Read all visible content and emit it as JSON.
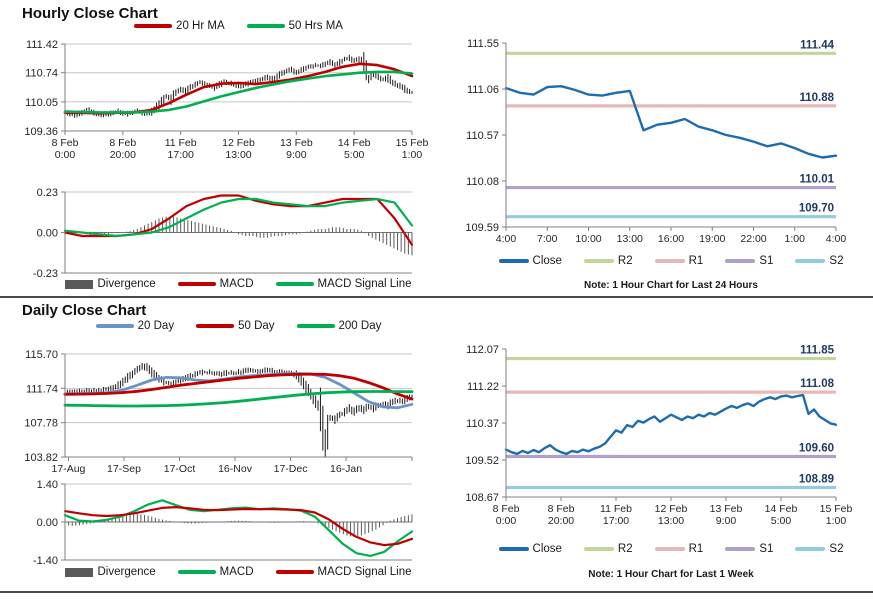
{
  "sections": {
    "hourly": {
      "title": "Hourly Close Chart"
    },
    "daily": {
      "title": "Daily Close Chart"
    }
  },
  "colors": {
    "red": "#c00000",
    "green": "#00b050",
    "blue20": "#6b93c8",
    "close": "#1e6cb0",
    "r2": "#c2d69b",
    "r1": "#e6b9b8",
    "s1": "#b1a0c7",
    "s2": "#93cddd",
    "divergence": "#595959",
    "candle": "#1a1a1a",
    "axis": "#808080",
    "grid": "#c6c6c6",
    "zero": "#737373",
    "level_label": "#1f3864"
  },
  "chart_data": [
    {
      "name": "hourly-price",
      "type": "line",
      "ylim": [
        109.36,
        111.42
      ],
      "yticks": [
        111.42,
        110.74,
        110.05,
        109.36
      ],
      "xticks": [
        "8 Feb|0:00",
        "8 Feb|20:00",
        "11 Feb|17:00",
        "12 Feb|13:00",
        "13 Feb|9:00",
        "14 Feb|5:00",
        "15 Feb|1:00"
      ],
      "grid": "all",
      "candles": {
        "color": "candle",
        "pad": 0.035,
        "values": [
          109.8,
          109.76,
          109.74,
          109.78,
          109.82,
          109.85,
          109.8,
          109.76,
          109.73,
          109.76,
          109.8,
          109.83,
          109.79,
          109.76,
          109.8,
          109.84,
          109.8,
          109.77,
          109.82,
          109.9,
          110.05,
          110.18,
          110.12,
          110.28,
          110.35,
          110.3,
          110.38,
          110.45,
          110.5,
          110.48,
          110.42,
          110.38,
          110.45,
          110.52,
          110.5,
          110.46,
          110.42,
          110.45,
          110.48,
          110.52,
          110.56,
          110.6,
          110.63,
          110.58,
          110.65,
          110.72,
          110.78,
          110.82,
          110.75,
          110.8,
          110.85,
          110.88,
          110.92,
          110.9,
          110.95,
          111.0,
          110.92,
          110.98,
          111.05,
          111.08,
          111.02,
          111.06,
          110.98,
          110.6,
          110.72,
          110.65,
          110.58,
          110.62,
          110.5,
          110.45,
          110.4,
          110.32,
          110.28
        ]
      },
      "series": [
        {
          "name": "20 Hr MA",
          "color": "red",
          "width": 2.6,
          "values": [
            109.79,
            109.79,
            109.78,
            109.79,
            109.8,
            109.86,
            110.02,
            110.22,
            110.4,
            110.48,
            110.5,
            110.47,
            110.52,
            110.58,
            110.66,
            110.76,
            110.88,
            110.95,
            110.92,
            110.82,
            110.66
          ]
        },
        {
          "name": "50 Hrs MA",
          "color": "green",
          "width": 2.6,
          "values": [
            109.82,
            109.81,
            109.8,
            109.8,
            109.8,
            109.82,
            109.86,
            109.94,
            110.06,
            110.18,
            110.28,
            110.38,
            110.46,
            110.54,
            110.6,
            110.66,
            110.7,
            110.74,
            110.76,
            110.76,
            110.72
          ]
        }
      ],
      "legend": [
        {
          "label": "20 Hr MA",
          "swatch": "line",
          "color": "red"
        },
        {
          "label": "50 Hrs MA",
          "swatch": "line",
          "color": "green"
        }
      ]
    },
    {
      "name": "hourly-macd",
      "type": "line",
      "ylim": [
        -0.23,
        0.23
      ],
      "yticks": [
        0.23,
        0.0,
        -0.23
      ],
      "xticks": [],
      "grid": "ends",
      "zero_line": true,
      "bars": {
        "color": "divergence",
        "values": [
          -0.01,
          -0.01,
          0.0,
          -0.01,
          -0.02,
          -0.01,
          -0.01,
          0.0,
          0.0,
          0.01,
          0.02,
          0.04,
          0.06,
          0.08,
          0.09,
          0.09,
          0.08,
          0.07,
          0.06,
          0.05,
          0.04,
          0.03,
          0.02,
          0.01,
          -0.01,
          -0.02,
          -0.02,
          -0.03,
          -0.03,
          -0.02,
          -0.02,
          -0.01,
          -0.01,
          0.0,
          0.01,
          0.02,
          0.02,
          0.03,
          0.03,
          0.02,
          0.02,
          0.01,
          -0.02,
          -0.04,
          -0.06,
          -0.08,
          -0.1,
          -0.12,
          -0.13
        ]
      },
      "series": [
        {
          "name": "MACD",
          "color": "red",
          "width": 2.2,
          "values": [
            0.0,
            -0.02,
            -0.02,
            -0.02,
            -0.01,
            0.02,
            0.08,
            0.15,
            0.19,
            0.21,
            0.21,
            0.18,
            0.16,
            0.15,
            0.15,
            0.17,
            0.19,
            0.19,
            0.19,
            0.08,
            -0.07
          ]
        },
        {
          "name": "MACD Signal Line",
          "color": "green",
          "width": 2.2,
          "values": [
            0.01,
            0.0,
            -0.01,
            -0.02,
            -0.01,
            0.0,
            0.03,
            0.08,
            0.13,
            0.17,
            0.19,
            0.19,
            0.17,
            0.16,
            0.15,
            0.15,
            0.17,
            0.18,
            0.19,
            0.17,
            0.04
          ]
        }
      ],
      "legend": [
        {
          "label": "Divergence",
          "swatch": "rect",
          "color": "divergence"
        },
        {
          "label": "MACD",
          "swatch": "line",
          "color": "red"
        },
        {
          "label": "MACD Signal Line",
          "swatch": "line",
          "color": "green"
        }
      ]
    },
    {
      "name": "day24-close",
      "type": "line",
      "ylim": [
        109.59,
        111.55
      ],
      "yticks": [
        111.55,
        111.06,
        110.57,
        110.08,
        109.59
      ],
      "xticks": [
        "4:00",
        "7:00",
        "10:00",
        "13:00",
        "16:00",
        "19:00",
        "22:00",
        "1:00",
        "4:00"
      ],
      "grid": "none",
      "note": "Note: 1 Hour Chart for Last 24 Hours",
      "levels": [
        {
          "name": "R2",
          "value": 111.44,
          "label": "111.44",
          "color": "r2"
        },
        {
          "name": "R1",
          "value": 110.88,
          "label": "110.88",
          "color": "r1"
        },
        {
          "name": "S1",
          "value": 110.01,
          "label": "110.01",
          "color": "s1"
        },
        {
          "name": "S2",
          "value": 109.7,
          "label": "109.70",
          "color": "s2"
        }
      ],
      "series": [
        {
          "name": "Close",
          "color": "close",
          "width": 2.4,
          "values": [
            111.07,
            111.02,
            111.0,
            111.08,
            111.09,
            111.05,
            111.0,
            110.99,
            111.02,
            111.04,
            110.62,
            110.68,
            110.7,
            110.74,
            110.66,
            110.62,
            110.57,
            110.54,
            110.5,
            110.45,
            110.48,
            110.43,
            110.37,
            110.33,
            110.35
          ]
        }
      ],
      "legend": [
        {
          "label": "Close",
          "swatch": "line",
          "color": "close"
        },
        {
          "label": "R2",
          "swatch": "line",
          "color": "r2"
        },
        {
          "label": "R1",
          "swatch": "line",
          "color": "r1"
        },
        {
          "label": "S1",
          "swatch": "line",
          "color": "s1"
        },
        {
          "label": "S2",
          "swatch": "line",
          "color": "s2"
        }
      ]
    },
    {
      "name": "daily-price",
      "type": "line",
      "ylim": [
        103.82,
        115.7
      ],
      "yticks": [
        115.7,
        111.74,
        107.78,
        103.82
      ],
      "xticks": [
        "17-Aug",
        "17-Sep",
        "17-Oct",
        "16-Nov",
        "17-Dec",
        "16-Jan"
      ],
      "xtick_pos": [
        0.01,
        0.17,
        0.33,
        0.49,
        0.65,
        0.81
      ],
      "end_tick": true,
      "grid": "all",
      "candles": {
        "color": "candle",
        "pad": 0.2,
        "values": [
          111.3,
          111.25,
          111.35,
          111.4,
          111.3,
          111.45,
          111.5,
          111.4,
          111.55,
          111.6,
          111.8,
          112.1,
          112.5,
          112.9,
          113.4,
          113.9,
          114.3,
          114.1,
          113.6,
          113.1,
          112.7,
          112.4,
          112.3,
          112.5,
          112.7,
          112.9,
          113.1,
          113.3,
          113.5,
          113.6,
          113.55,
          113.4,
          113.35,
          113.45,
          113.55,
          113.5,
          113.6,
          113.7,
          113.8,
          113.75,
          113.7,
          113.8,
          113.85,
          113.75,
          113.6,
          113.65,
          113.55,
          113.5,
          113.3,
          112.7,
          111.9,
          111.0,
          110.2,
          109.3,
          105.0,
          108.4,
          108.1,
          108.7,
          108.9,
          109.4,
          109.0,
          109.5,
          109.2,
          109.7,
          109.45,
          109.8,
          109.95,
          109.8,
          110.15,
          110.35,
          110.25,
          110.6,
          110.85
        ]
      },
      "series": [
        {
          "name": "20 Day",
          "color": "blue20",
          "width": 2.8,
          "values": [
            111.1,
            111.12,
            111.15,
            111.25,
            111.55,
            112.1,
            112.7,
            113.0,
            112.95,
            112.7,
            112.6,
            112.8,
            113.05,
            113.2,
            113.3,
            113.4,
            113.45,
            113.4,
            113.0,
            112.2,
            111.2,
            110.2,
            109.6,
            109.5,
            109.9
          ]
        },
        {
          "name": "50 Day",
          "color": "red",
          "width": 2.8,
          "values": [
            111.05,
            111.08,
            111.1,
            111.15,
            111.25,
            111.4,
            111.6,
            111.85,
            112.1,
            112.3,
            112.5,
            112.7,
            112.9,
            113.05,
            113.2,
            113.3,
            113.35,
            113.38,
            113.35,
            113.2,
            112.9,
            112.4,
            111.8,
            111.1,
            110.5
          ]
        },
        {
          "name": "200 Day",
          "color": "green",
          "width": 2.8,
          "values": [
            109.8,
            109.78,
            109.75,
            109.72,
            109.7,
            109.7,
            109.72,
            109.75,
            109.8,
            109.88,
            109.98,
            110.1,
            110.25,
            110.42,
            110.6,
            110.78,
            110.95,
            111.1,
            111.22,
            111.3,
            111.35,
            111.38,
            111.38,
            111.36,
            111.35
          ]
        }
      ],
      "legend": [
        {
          "label": "20 Day",
          "swatch": "line",
          "color": "blue20"
        },
        {
          "label": "50 Day",
          "swatch": "line",
          "color": "red"
        },
        {
          "label": "200 Day",
          "swatch": "line",
          "color": "green"
        }
      ]
    },
    {
      "name": "daily-macd",
      "type": "line",
      "ylim": [
        -1.4,
        1.4
      ],
      "yticks": [
        1.4,
        0.0,
        -1.4
      ],
      "xticks": [],
      "grid": "ends",
      "zero_line": true,
      "bars": {
        "color": "divergence",
        "values": [
          -0.1,
          -0.15,
          -0.12,
          -0.08,
          -0.04,
          0.02,
          0.08,
          0.15,
          0.22,
          0.28,
          0.3,
          0.26,
          0.2,
          0.12,
          0.06,
          0.02,
          -0.02,
          -0.05,
          -0.06,
          -0.04,
          -0.02,
          0.0,
          0.02,
          0.04,
          0.05,
          0.04,
          0.02,
          0.0,
          -0.02,
          -0.03,
          -0.02,
          0.0,
          0.02,
          0.03,
          0.02,
          -0.05,
          -0.15,
          -0.28,
          -0.4,
          -0.5,
          -0.55,
          -0.5,
          -0.4,
          -0.28,
          -0.12,
          0.05,
          0.15,
          0.22,
          0.28
        ]
      },
      "series": [
        {
          "name": "MACD",
          "color": "green",
          "width": 2.2,
          "values": [
            0.25,
            0.05,
            0.02,
            0.08,
            0.2,
            0.4,
            0.65,
            0.8,
            0.62,
            0.45,
            0.4,
            0.45,
            0.5,
            0.53,
            0.47,
            0.5,
            0.47,
            0.42,
            0.2,
            -0.3,
            -0.8,
            -1.15,
            -1.25,
            -1.1,
            -0.7,
            -0.35
          ]
        },
        {
          "name": "MACD Signal Line",
          "color": "red",
          "width": 2.2,
          "values": [
            0.4,
            0.32,
            0.25,
            0.22,
            0.25,
            0.32,
            0.42,
            0.52,
            0.55,
            0.5,
            0.45,
            0.44,
            0.46,
            0.48,
            0.47,
            0.47,
            0.46,
            0.44,
            0.35,
            0.1,
            -0.25,
            -0.55,
            -0.75,
            -0.85,
            -0.8,
            -0.62
          ]
        }
      ],
      "legend": [
        {
          "label": "Divergence",
          "swatch": "rect",
          "color": "divergence"
        },
        {
          "label": "MACD",
          "swatch": "line",
          "color": "green"
        },
        {
          "label": "MACD Signal Line",
          "swatch": "line",
          "color": "red"
        }
      ]
    },
    {
      "name": "week1-close",
      "type": "line",
      "ylim": [
        108.67,
        112.07
      ],
      "yticks": [
        112.07,
        111.22,
        110.37,
        109.52,
        108.67
      ],
      "xticks": [
        "8 Feb|0:00",
        "8 Feb|20:00",
        "11 Feb|17:00",
        "12 Feb|13:00",
        "13 Feb|9:00",
        "14 Feb|5:00",
        "15 Feb|1:00"
      ],
      "grid": "none",
      "note": "Note: 1 Hour Chart for Last 1 Week",
      "levels": [
        {
          "name": "R2",
          "value": 111.85,
          "label": "111.85",
          "color": "r2"
        },
        {
          "name": "R1",
          "value": 111.08,
          "label": "111.08",
          "color": "r1"
        },
        {
          "name": "S1",
          "value": 109.6,
          "label": "109.60",
          "color": "s1"
        },
        {
          "name": "S2",
          "value": 108.89,
          "label": "108.89",
          "color": "s2"
        }
      ],
      "series": [
        {
          "name": "Close",
          "color": "close",
          "width": 2.4,
          "values": [
            109.76,
            109.7,
            109.66,
            109.73,
            109.68,
            109.75,
            109.7,
            109.79,
            109.86,
            109.76,
            109.7,
            109.66,
            109.73,
            109.7,
            109.76,
            109.72,
            109.78,
            109.82,
            109.9,
            110.05,
            110.2,
            110.15,
            110.32,
            110.28,
            110.42,
            110.38,
            110.46,
            110.52,
            110.4,
            110.48,
            110.56,
            110.5,
            110.44,
            110.52,
            110.48,
            110.56,
            110.52,
            110.6,
            110.56,
            110.63,
            110.7,
            110.76,
            110.72,
            110.78,
            110.82,
            110.76,
            110.86,
            110.92,
            110.96,
            110.92,
            110.98,
            111.0,
            110.96,
            110.99,
            111.01,
            110.58,
            110.68,
            110.52,
            110.44,
            110.36,
            110.33
          ]
        }
      ],
      "legend": [
        {
          "label": "Close",
          "swatch": "line",
          "color": "close"
        },
        {
          "label": "R2",
          "swatch": "line",
          "color": "r2"
        },
        {
          "label": "R1",
          "swatch": "line",
          "color": "r1"
        },
        {
          "label": "S1",
          "swatch": "line",
          "color": "s1"
        },
        {
          "label": "S2",
          "swatch": "line",
          "color": "s2"
        }
      ]
    }
  ]
}
